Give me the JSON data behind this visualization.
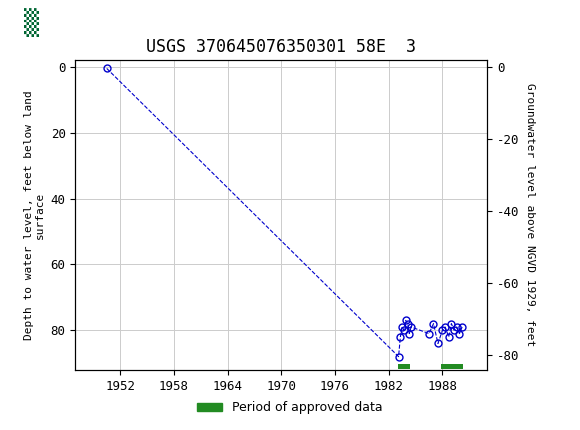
{
  "title": "USGS 370645076350301 58E  3",
  "ylabel_left": "Depth to water level, feet below land\nsurface",
  "ylabel_right": "Groundwater level above NGVD 1929, feet",
  "header_color": "#006633",
  "ylim_left": [
    92,
    -2
  ],
  "ylim_right": [
    -84,
    2
  ],
  "xlim": [
    1947,
    1993
  ],
  "xticks": [
    1952,
    1958,
    1964,
    1970,
    1976,
    1982,
    1988
  ],
  "yticks_left": [
    0,
    20,
    40,
    60,
    80
  ],
  "yticks_right": [
    0,
    -20,
    -40,
    -60,
    -80
  ],
  "data_x": [
    1950.5,
    1983.1,
    1983.3,
    1983.5,
    1983.7,
    1983.9,
    1984.1,
    1984.3,
    1984.5,
    1986.5,
    1987.0,
    1987.5,
    1988.0,
    1988.3,
    1988.7,
    1989.0,
    1989.3,
    1989.6,
    1989.9,
    1990.2
  ],
  "data_y": [
    0.5,
    88,
    82,
    79,
    80,
    77,
    78,
    81,
    79,
    81,
    78,
    84,
    80,
    79,
    82,
    78,
    80,
    79,
    81,
    79
  ],
  "approved_bars": [
    {
      "xmin": 1983.0,
      "xmax": 1984.4,
      "color": "#228B22"
    },
    {
      "xmin": 1987.8,
      "xmax": 1990.3,
      "color": "#228B22"
    }
  ],
  "approved_bar_y": 91.0,
  "approved_bar_height": 1.5,
  "line_color": "#0000CC",
  "marker_color": "#0000CC",
  "bg_color": "#ffffff",
  "grid_color": "#cccccc",
  "legend_label": "Period of approved data",
  "legend_color": "#228B22"
}
